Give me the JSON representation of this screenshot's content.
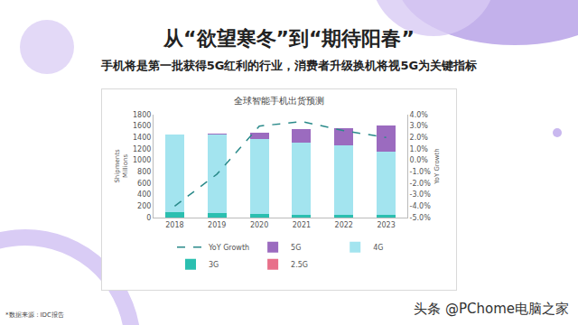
{
  "header": {
    "title": "从“欲望寒冬”到“期待阳春”",
    "subtitle": "手机将是第一批获得5G红利的行业，消费者升级换机将视5G为关键指标"
  },
  "chart_data": {
    "type": "bar",
    "title": "全球智能手机出货预测",
    "y_label": "Shipments Millions",
    "y2_label": "YoY Growth",
    "categories": [
      "2018",
      "2019",
      "2020",
      "2021",
      "2022",
      "2023"
    ],
    "series": [
      {
        "name": "2.5G",
        "color": "#e8708a",
        "values": [
          5,
          5,
          5,
          3,
          3,
          3
        ]
      },
      {
        "name": "3G",
        "color": "#2bbfb0",
        "values": [
          85,
          70,
          60,
          50,
          45,
          40
        ]
      },
      {
        "name": "4G",
        "color": "#a3e4ef",
        "values": [
          1365,
          1385,
          1310,
          1260,
          1210,
          1110
        ]
      },
      {
        "name": "5G",
        "color": "#9b6bbf",
        "values": [
          0,
          5,
          115,
          230,
          300,
          450
        ]
      },
      {
        "name": "YoY Growth",
        "type": "line",
        "axis": "y2",
        "color": "#2a8a8a",
        "line_style": "dash",
        "values": [
          -4.0,
          -1.2,
          3.0,
          3.4,
          2.6,
          2.0
        ]
      }
    ],
    "stacked": true,
    "ylim": [
      0,
      1800
    ],
    "yticks": [
      0,
      200,
      400,
      600,
      800,
      1000,
      1200,
      1400,
      1600,
      1800
    ],
    "y2lim": [
      -5,
      4
    ],
    "y2ticks": [
      {
        "value": -5,
        "label": "-5.0%"
      },
      {
        "value": -4,
        "label": "-4.0%"
      },
      {
        "value": -3,
        "label": "-3.0%"
      },
      {
        "value": -2,
        "label": "-2.0%"
      },
      {
        "value": -1,
        "label": "-1.0%"
      },
      {
        "value": 0,
        "label": "0.0%"
      },
      {
        "value": 1,
        "label": "1.0%"
      },
      {
        "value": 2,
        "label": "2.0%"
      },
      {
        "value": 3,
        "label": "3.0%"
      },
      {
        "value": 4,
        "label": "4.0%"
      }
    ],
    "grid": false,
    "legend": "bottom"
  },
  "source": "*数据来源：IDC报告",
  "watermark": "头条 @PChome电脑之家"
}
